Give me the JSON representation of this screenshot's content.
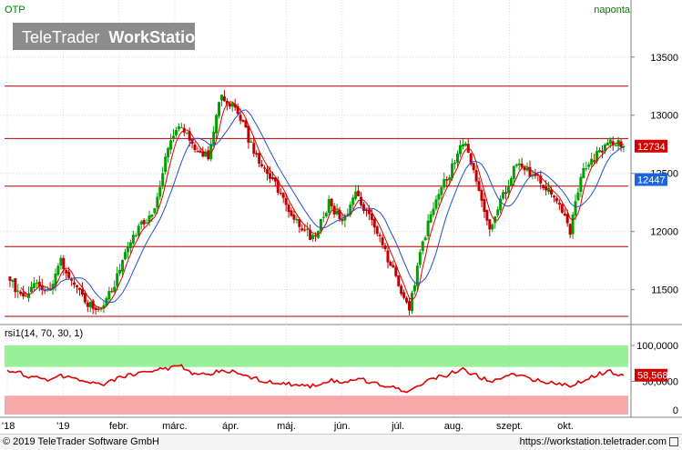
{
  "header": {
    "symbol": "OTP",
    "period": "naponta",
    "watermark_light": "TeleTrader",
    "watermark_bold": "WorkStation"
  },
  "footer": {
    "copyright": "© 2019 TeleTrader Software GmbH",
    "url": "https://workstation.teletrader.com"
  },
  "colors": {
    "up": "#00a000",
    "down": "#c00000",
    "ma_fast": "#dd0000",
    "ma_slow": "#2050d0",
    "level_line": "#b00000",
    "rsi_line": "#dd0000",
    "rsi_upper_band": "#98f098",
    "rsi_lower_band": "#f8a8a8",
    "label_red": "#d40000",
    "label_blue": "#1e64dc"
  },
  "chart_data": [
    {
      "type": "candlestick",
      "title": "OTP",
      "period": "naponta",
      "x_ticks": [
        "'18",
        "'19",
        "febr.",
        "márc.",
        "ápr.",
        "máj.",
        "jún.",
        "júl.",
        "aug.",
        "szept.",
        "okt."
      ],
      "y_ticks": [
        11500,
        12000,
        12500,
        13000,
        13500
      ],
      "ylim": [
        11200,
        13850
      ],
      "last_price": "12734",
      "ma_label": "12447",
      "horizontal_levels": [
        13250,
        12800,
        12390,
        11870,
        11270
      ],
      "weekly_closes": [
        11650,
        11420,
        11560,
        11480,
        11750,
        11520,
        11380,
        11300,
        11550,
        11850,
        12050,
        12200,
        12750,
        12900,
        12700,
        12650,
        13180,
        13050,
        12800,
        12550,
        12400,
        12200,
        12000,
        11950,
        12250,
        12100,
        12300,
        12150,
        11900,
        11600,
        11350,
        11900,
        12300,
        12500,
        12780,
        12450,
        12050,
        12300,
        12600,
        12500,
        12400,
        12250,
        12000,
        12550,
        12650,
        12800,
        12734
      ],
      "series": [
        {
          "name": "",
          "kind": "ma",
          "period": 5
        },
        {
          "name": "",
          "kind": "ma",
          "period": 12
        }
      ]
    },
    {
      "type": "line",
      "title": "rsi1(14, 70, 30, 1)",
      "y_ticks": [
        "100,0000",
        "50,0000",
        "0"
      ],
      "ylim": [
        0,
        100
      ],
      "last_value": "58,5684",
      "band_upper": [
        70,
        100
      ],
      "band_lower": [
        0,
        30
      ],
      "weekly_values": [
        66,
        61,
        55,
        53,
        58,
        54,
        50,
        46,
        52,
        58,
        62,
        65,
        68,
        70,
        60,
        58,
        66,
        62,
        57,
        52,
        49,
        46,
        43,
        44,
        52,
        48,
        54,
        50,
        45,
        40,
        37,
        48,
        55,
        60,
        68,
        58,
        50,
        55,
        60,
        52,
        50,
        46,
        44,
        52,
        60,
        63,
        58.57
      ]
    }
  ]
}
